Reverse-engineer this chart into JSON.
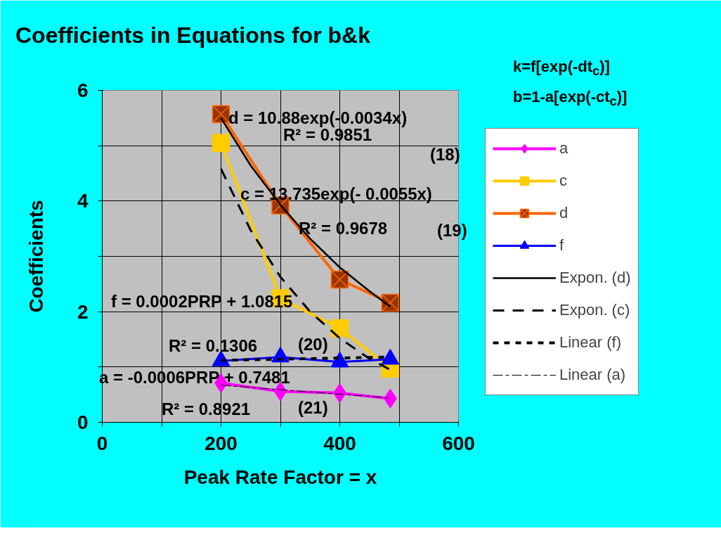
{
  "chart_data": {
    "type": "line",
    "title": "Coefficients in Equations for b&k",
    "xlabel": "Peak Rate Factor = x",
    "ylabel": "Coefficients",
    "xlim": [
      0,
      600
    ],
    "ylim": [
      0,
      6
    ],
    "xticks": [
      0,
      {
        "value": 100,
        "label": null
      },
      200,
      {
        "value": 300,
        "label": null
      },
      400,
      {
        "value": 500,
        "label": null
      },
      600
    ],
    "yticks": [
      0,
      {
        "value": 1,
        "label": null
      },
      2,
      {
        "value": 3,
        "label": null
      },
      4,
      {
        "value": 5,
        "label": null
      },
      6
    ],
    "grid": true,
    "legend": "right",
    "x": [
      200,
      300,
      400,
      485
    ],
    "series": [
      {
        "name": "a",
        "color": "#ff00ff",
        "marker": "diamond",
        "values": [
          0.71,
          0.56,
          0.53,
          0.43
        ]
      },
      {
        "name": "c",
        "color": "#ffcc00",
        "marker": "square",
        "values": [
          5.05,
          2.24,
          1.7,
          0.97
        ]
      },
      {
        "name": "d",
        "color": "#ff6600",
        "marker": "square_x",
        "values": [
          5.57,
          3.92,
          2.58,
          2.16
        ]
      },
      {
        "name": "f",
        "color": "#0000ff",
        "marker": "triangle",
        "values": [
          1.11,
          1.18,
          1.09,
          1.14
        ]
      },
      {
        "name": "Expon. (d)",
        "color": "#000000",
        "marker": "none",
        "line_style": "solid",
        "x": [
          200,
          250,
          300,
          350,
          400,
          450,
          485
        ],
        "values": [
          5.5,
          4.64,
          3.93,
          3.32,
          2.8,
          2.37,
          2.09
        ]
      },
      {
        "name": "Expon. (c)",
        "color": "#000000",
        "marker": "none",
        "line_style": "dashed",
        "x": [
          200,
          250,
          300,
          350,
          400,
          450,
          485
        ],
        "values": [
          4.58,
          3.47,
          2.63,
          2.0,
          1.52,
          1.15,
          0.95
        ]
      },
      {
        "name": "Linear (f)",
        "color": "#000000",
        "marker": "none",
        "line_style": "dotted",
        "x": [
          200,
          485
        ],
        "values": [
          1.12,
          1.18
        ]
      },
      {
        "name": "Linear (a)",
        "color": "#000000",
        "marker": "none",
        "line_style": "dashdot",
        "x": [
          200,
          485
        ],
        "values": [
          0.67,
          0.44
        ]
      }
    ],
    "annotations": [
      "k=f[exp(-dt$_{c}$)]",
      "b=1-a[exp(-ct$_{c}$)]",
      "d = 10.88exp(-0.0034x)",
      "R² = 0.9851",
      "(18)",
      "c = 13.735exp(- 0.0055x)",
      "R² = 0.9678",
      "(19)",
      "f = 0.0002PRP + 1.0815",
      "R² = 0.1306",
      "(20)",
      "a = -0.0006PRP + 0.7481",
      "R² = 0.8921",
      "(21)"
    ]
  }
}
